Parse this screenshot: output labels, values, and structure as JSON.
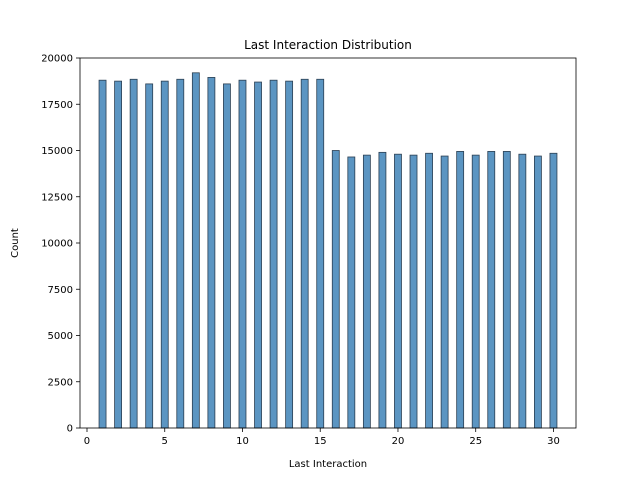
{
  "chart_data": {
    "type": "bar",
    "title": "Last Interaction Distribution",
    "xlabel": "Last Interaction",
    "ylabel": "Count",
    "xlim": [
      -0.45,
      31.45
    ],
    "ylim": [
      0,
      20000
    ],
    "xticks": [
      0,
      5,
      10,
      15,
      20,
      25,
      30
    ],
    "yticks": [
      0,
      2500,
      5000,
      7500,
      10000,
      12500,
      15000,
      17500,
      20000
    ],
    "grid": false,
    "bar_color": "#5b95c2",
    "bar_edge_color": "#2b3f52",
    "x": [
      1,
      2,
      3,
      4,
      5,
      6,
      7,
      8,
      9,
      10,
      11,
      12,
      13,
      14,
      15,
      16,
      17,
      18,
      19,
      20,
      21,
      22,
      23,
      24,
      25,
      26,
      27,
      28,
      29,
      30
    ],
    "values": [
      18800,
      18750,
      18850,
      18600,
      18750,
      18850,
      19200,
      18950,
      18600,
      18800,
      18700,
      18800,
      18750,
      18850,
      18850,
      15000,
      14650,
      14750,
      14900,
      14800,
      14750,
      14850,
      14700,
      14950,
      14750,
      14950,
      14950,
      14800,
      14700,
      14850
    ]
  }
}
